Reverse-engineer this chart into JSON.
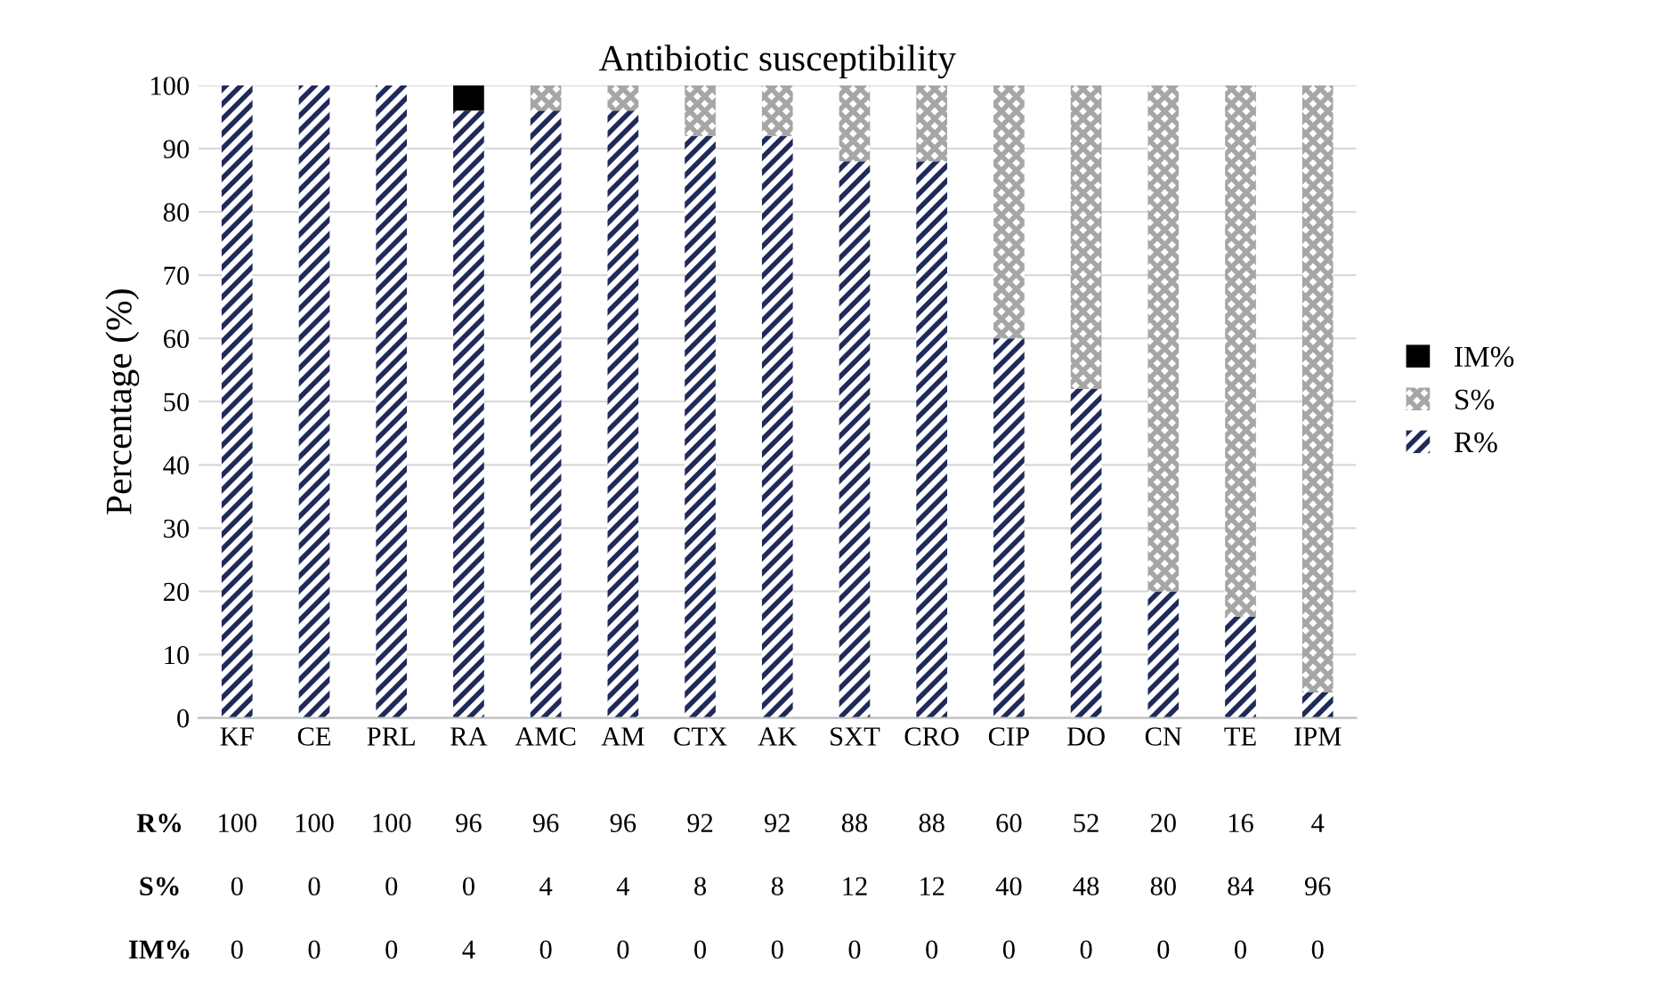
{
  "chart_data": {
    "type": "bar",
    "title": "Antibiotic susceptibility",
    "ylabel": "Percentage (%)",
    "stacked": true,
    "categories": [
      "KF",
      "CE",
      "PRL",
      "RA",
      "AMC",
      "AM",
      "CTX",
      "AK",
      "SXT",
      "CRO",
      "CIP",
      "DO",
      "CN",
      "TE",
      "IPM"
    ],
    "series": [
      {
        "name": "R%",
        "color": "#1f2a5c",
        "values": [
          100,
          100,
          100,
          96,
          96,
          96,
          92,
          92,
          88,
          88,
          60,
          52,
          20,
          16,
          4
        ]
      },
      {
        "name": "S%",
        "color": "#a6a6a6",
        "values": [
          0,
          0,
          0,
          0,
          4,
          4,
          8,
          8,
          12,
          12,
          40,
          48,
          80,
          84,
          96
        ]
      },
      {
        "name": "IM%",
        "color": "#000000",
        "values": [
          0,
          0,
          0,
          4,
          0,
          0,
          0,
          0,
          0,
          0,
          0,
          0,
          0,
          0,
          0
        ]
      }
    ],
    "ylim": [
      0,
      100
    ],
    "yticks": [
      0,
      10,
      20,
      30,
      40,
      50,
      60,
      70,
      80,
      90,
      100
    ],
    "grid": "y",
    "legend": "right",
    "data_labels": true
  }
}
